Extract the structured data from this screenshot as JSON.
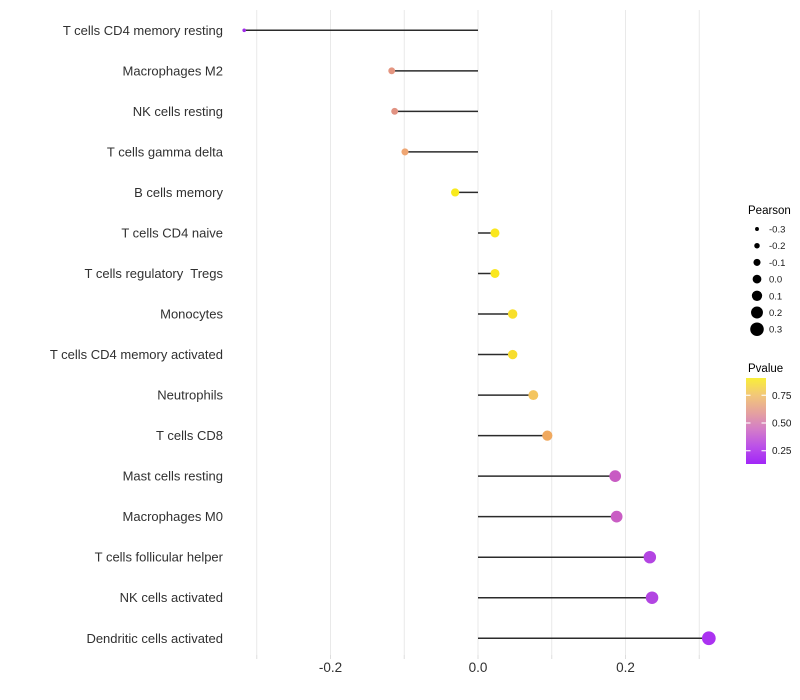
{
  "figure": {
    "background": "#FFFFFF",
    "grid_color": "#E9E9E9",
    "tick_color": "#DDDDDD",
    "stem_color": "#2B2B2B",
    "text_color": "#303030",
    "legend_text_color": "#1A1A1A"
  },
  "chart_data": {
    "type": "scatter",
    "variant": "horizontal-lollipop",
    "title": "",
    "xlabel": "",
    "ylabel": "",
    "xlim": [
      -0.33,
      0.35
    ],
    "grid": true,
    "baseline_x": 0.0,
    "x_gridlines": [
      -0.3,
      -0.2,
      -0.1,
      0.0,
      0.1,
      0.2,
      0.3
    ],
    "x_ticks": [
      {
        "value": -0.2,
        "label": "-0.2"
      },
      {
        "value": 0.0,
        "label": "0.0"
      },
      {
        "value": 0.2,
        "label": "0.2"
      }
    ],
    "categories": [
      "T cells CD4 memory resting",
      "Macrophages M2",
      "NK cells resting",
      "T cells gamma delta",
      "B cells memory",
      "T cells CD4 naive",
      "T cells regulatory  Tregs",
      "Monocytes",
      "T cells CD4 memory activated",
      "Neutrophils",
      "T cells CD8",
      "Mast cells resting",
      "Macrophages M0",
      "T cells follicular helper",
      "NK cells activated",
      "Dendritic cells activated"
    ],
    "series": [
      {
        "name": "Pearson",
        "values": [
          -0.317,
          -0.117,
          -0.113,
          -0.099,
          -0.031,
          0.023,
          0.023,
          0.047,
          0.047,
          0.075,
          0.094,
          0.186,
          0.188,
          0.233,
          0.236,
          0.313
        ]
      }
    ],
    "point_colors": [
      "#A02BE9",
      "#E49580",
      "#E19282",
      "#EFA673",
      "#F8EA1E",
      "#FAE71D",
      "#FAE71D",
      "#F8DF2A",
      "#F7DD2E",
      "#F4C55F",
      "#F0A95F",
      "#C85BC3",
      "#C95DC4",
      "#B345E2",
      "#B245E2",
      "#AB32F1"
    ],
    "legend_position": "right"
  },
  "legends": {
    "size": {
      "title": "Pearson",
      "entries": [
        {
          "value": -0.3,
          "label": "-0.3"
        },
        {
          "value": -0.2,
          "label": "-0.2"
        },
        {
          "value": -0.1,
          "label": "-0.1"
        },
        {
          "value": 0.0,
          "label": "0.0"
        },
        {
          "value": 0.1,
          "label": "0.1"
        },
        {
          "value": 0.2,
          "label": "0.2"
        },
        {
          "value": 0.3,
          "label": "0.3"
        }
      ],
      "dot_color": "#000000"
    },
    "color": {
      "title": "Pvalue",
      "ticks": [
        {
          "value": 0.75,
          "label": "0.75"
        },
        {
          "value": 0.5,
          "label": "0.50"
        },
        {
          "value": 0.25,
          "label": "0.25"
        }
      ],
      "gradient_top_to_bottom": [
        "#F9EE38",
        "#F2C779",
        "#E5A29E",
        "#D37CC9",
        "#BB50E9",
        "#A126F7"
      ]
    }
  }
}
